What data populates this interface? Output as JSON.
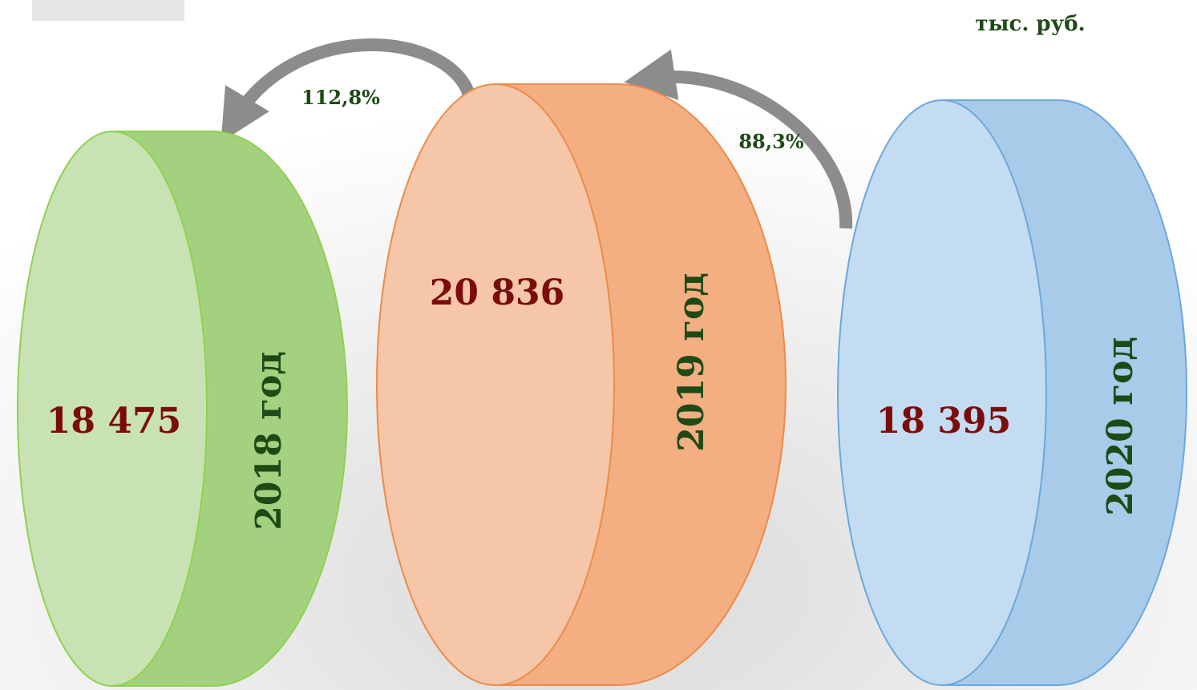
{
  "unit": "тыс. руб.",
  "items": [
    {
      "value": "18 475",
      "year": "2018 год"
    },
    {
      "value": "20 836",
      "year": "2019 год"
    },
    {
      "value": "18 395",
      "year": "2020 год"
    }
  ],
  "changes": [
    {
      "label": "112,8%"
    },
    {
      "label": "88,3%"
    }
  ]
}
